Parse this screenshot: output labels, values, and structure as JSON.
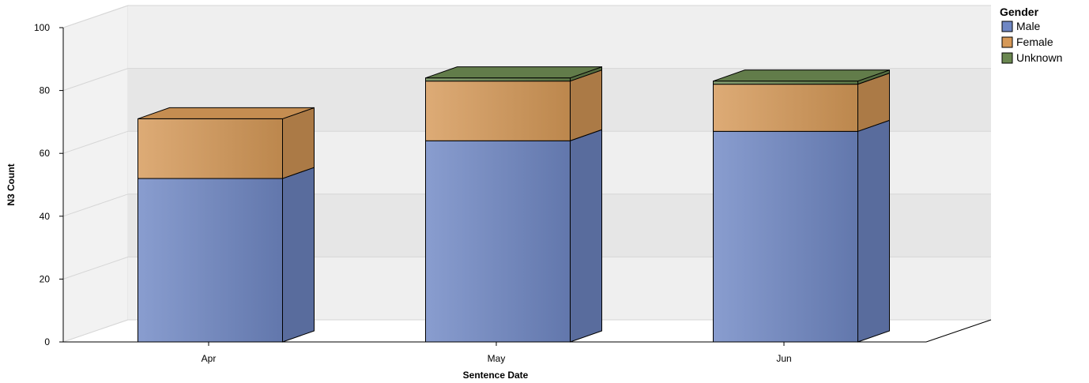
{
  "chart_data": {
    "type": "bar",
    "stacked": true,
    "three_d": true,
    "categories": [
      "Apr",
      "May",
      "Jun"
    ],
    "series": [
      {
        "name": "Male",
        "values": [
          52,
          64,
          67
        ],
        "color": "#6f87c4"
      },
      {
        "name": "Female",
        "values": [
          19,
          19,
          15
        ],
        "color": "#d69958"
      },
      {
        "name": "Unknown",
        "values": [
          0,
          1,
          1
        ],
        "color": "#6a8750"
      }
    ],
    "xlabel": "Sentence Date",
    "ylabel": "N3 Count",
    "ylim": [
      0,
      100
    ],
    "yticks": [
      0,
      20,
      40,
      60,
      80,
      100
    ],
    "grid": true,
    "legend": {
      "title": "Gender",
      "placement": "top-right"
    }
  }
}
